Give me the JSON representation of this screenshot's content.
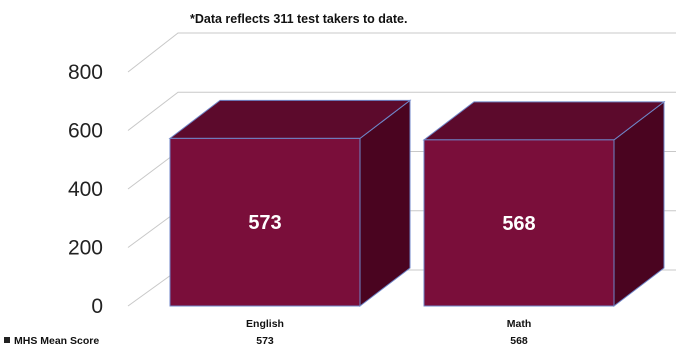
{
  "chart_data": {
    "type": "bar",
    "note": "*Data reflects 311 test takers to date.",
    "categories": [
      "English",
      "Math"
    ],
    "series": [
      {
        "name": "MHS Mean Score",
        "values": [
          573,
          568
        ]
      }
    ],
    "ylim": [
      0,
      800
    ],
    "yticks": [
      "0",
      "200",
      "400",
      "600",
      "800"
    ],
    "grid": true,
    "legend": "bottom-left",
    "bar_color": "#7a0e3a",
    "bar_side_color": "#4a0420",
    "bar_top_color": "#5c0a2c",
    "bar_edge_color": "#6f86c8"
  }
}
